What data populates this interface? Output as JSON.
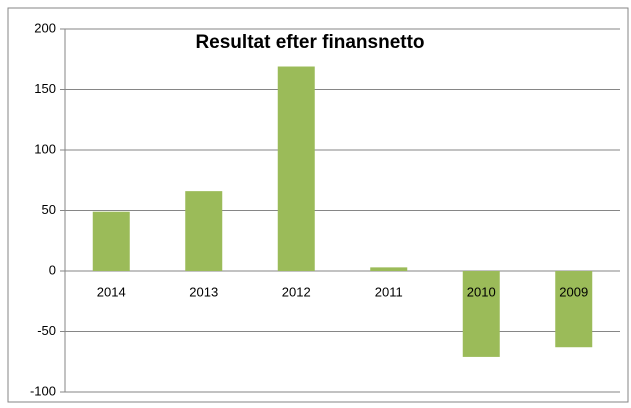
{
  "chart_data": {
    "type": "bar",
    "title": "Resultat efter finansnetto",
    "categories": [
      "2014",
      "2013",
      "2012",
      "2011",
      "2010",
      "2009"
    ],
    "values": [
      49,
      66,
      169,
      3,
      -71,
      -63
    ],
    "color": "#9bbb59",
    "ylim": [
      -100,
      200
    ],
    "yticks": [
      -100,
      -50,
      0,
      50,
      100,
      150,
      200
    ],
    "grid": true
  }
}
